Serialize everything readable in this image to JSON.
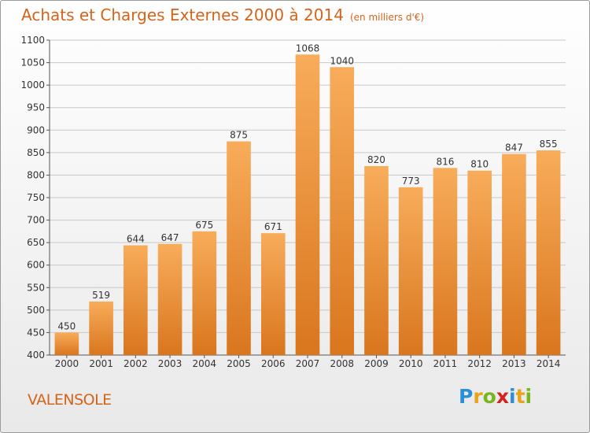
{
  "header": {
    "title": "Achats et Charges Externes 2000 à 2014",
    "subtitle": "(en milliers d'€)"
  },
  "footer": {
    "place": "VALENSOLE",
    "logo_letters": [
      "P",
      "r",
      "o",
      "x",
      "i",
      "t",
      "i"
    ],
    "logo_colors": [
      "#2a8fd6",
      "#e8a317",
      "#7ab51d",
      "#d4231e",
      "#2a8fd6",
      "#e8a317",
      "#7ab51d"
    ]
  },
  "colors": {
    "bar_light": "#f8ac5a",
    "bar_dark": "#d9761e",
    "grid": "#c8c8c8",
    "text": "#333333"
  },
  "chart_data": {
    "type": "bar",
    "categories": [
      "2000",
      "2001",
      "2002",
      "2003",
      "2004",
      "2005",
      "2006",
      "2007",
      "2008",
      "2009",
      "2010",
      "2011",
      "2012",
      "2013",
      "2014"
    ],
    "values": [
      450,
      519,
      644,
      647,
      675,
      875,
      671,
      1068,
      1040,
      820,
      773,
      816,
      810,
      847,
      855
    ],
    "title": "Achats et Charges Externes 2000 à 2014",
    "ylim": [
      400,
      1100
    ],
    "yticks": [
      400,
      450,
      500,
      550,
      600,
      650,
      700,
      750,
      800,
      850,
      900,
      950,
      1000,
      1050,
      1100
    ],
    "grid": true,
    "data_labels": true
  }
}
